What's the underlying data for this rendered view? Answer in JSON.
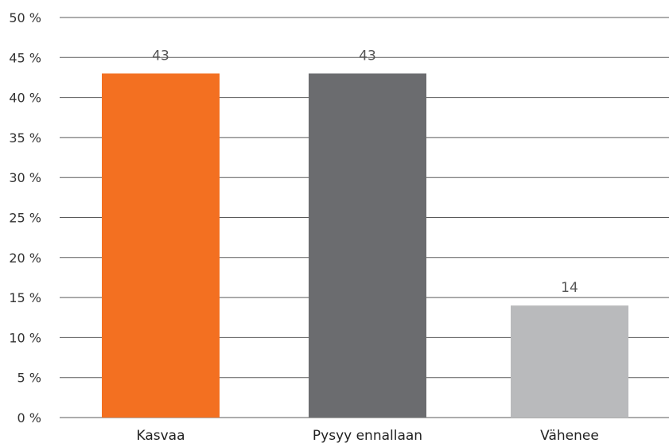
{
  "chart_data": {
    "type": "bar",
    "categories": [
      "Kasvaa",
      "Pysyy ennallaan",
      "Vähenee"
    ],
    "values": [
      43,
      43,
      14
    ],
    "data_labels": [
      "43",
      "43",
      "14"
    ],
    "bar_colors": [
      "#f37021",
      "#6b6c6f",
      "#b9babc"
    ],
    "title": "",
    "xlabel": "",
    "ylabel": "",
    "ylim": [
      0,
      50
    ],
    "ytick_values": [
      0,
      5,
      10,
      15,
      20,
      25,
      30,
      35,
      40,
      45,
      50
    ],
    "ytick_labels": [
      "0 %",
      "5 %",
      "10 %",
      "15 %",
      "20 %",
      "25 %",
      "30 %",
      "35 %",
      "40 %",
      "45 %",
      "50 %"
    ],
    "grid": true,
    "legend": false
  }
}
